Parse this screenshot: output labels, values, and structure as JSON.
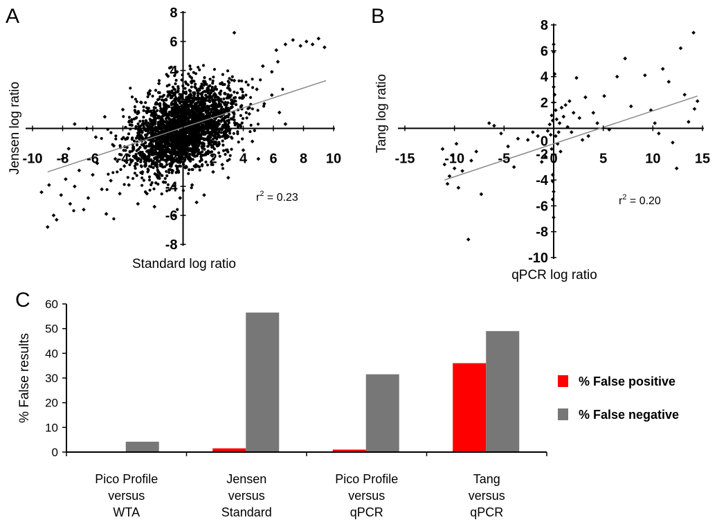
{
  "chart_data": [
    {
      "panel": "A",
      "type": "scatter",
      "xlabel": "Standard log ratio",
      "ylabel": "Jensen log ratio",
      "xlim": [
        -10,
        10
      ],
      "ylim": [
        -8,
        8
      ],
      "xticks": [
        "-10",
        "-8",
        "-6",
        "-4",
        "-2",
        "0",
        "2",
        "4",
        "6",
        "8",
        "10"
      ],
      "yticks": [
        "-8",
        "-6",
        "-4",
        "-2",
        "0",
        "2",
        "4",
        "6",
        "8"
      ],
      "annotation": "r2 = 0.23",
      "trendline": {
        "x": [
          -9.0,
          9.5
        ],
        "y": [
          -3.0,
          3.3
        ]
      },
      "points": [
        [
          -9.0,
          -6.8
        ],
        [
          -8.6,
          -6.0
        ],
        [
          -8.4,
          -6.3
        ],
        [
          -8.1,
          -4.6
        ],
        [
          -7.8,
          -3.5
        ],
        [
          -7.5,
          -5.2
        ],
        [
          -7.2,
          -4.0
        ],
        [
          -6.9,
          -2.9
        ],
        [
          -6.6,
          -5.6
        ],
        [
          -6.3,
          -4.8
        ],
        [
          -6.0,
          -3.2
        ],
        [
          -5.7,
          -2.4
        ],
        [
          -5.4,
          -4.2
        ],
        [
          -5.1,
          -5.9
        ],
        [
          -4.8,
          -3.6
        ],
        [
          -4.5,
          -2.1
        ],
        [
          -4.2,
          -4.5
        ],
        [
          -3.9,
          -2.6
        ],
        [
          -3.6,
          -3.9
        ],
        [
          -3.3,
          -1.4
        ],
        [
          -3.0,
          -5.2
        ],
        [
          -2.7,
          -3.0
        ],
        [
          -7.2,
          0.3
        ],
        [
          -6.4,
          0.0
        ],
        [
          -5.8,
          -0.6
        ],
        [
          -5.2,
          0.8
        ],
        [
          -4.6,
          -1.2
        ],
        [
          -4.0,
          1.3
        ],
        [
          -3.4,
          0.6
        ],
        [
          -2.8,
          1.8
        ],
        [
          -2.2,
          2.6
        ],
        [
          -1.6,
          3.1
        ],
        [
          -1.0,
          3.6
        ],
        [
          -0.4,
          3.9
        ],
        [
          0.5,
          4.1
        ],
        [
          1.2,
          2.9
        ],
        [
          2.0,
          1.9
        ],
        [
          2.8,
          2.4
        ],
        [
          3.4,
          3.3
        ],
        [
          3.9,
          2.1
        ],
        [
          4.4,
          1.0
        ],
        [
          4.9,
          2.7
        ],
        [
          5.4,
          1.7
        ],
        [
          5.9,
          2.3
        ],
        [
          6.4,
          1.1
        ],
        [
          6.8,
          0.3
        ],
        [
          3.4,
          6.6
        ],
        [
          6.2,
          5.4
        ],
        [
          6.8,
          5.8
        ],
        [
          7.3,
          6.1
        ],
        [
          7.8,
          5.7
        ],
        [
          8.2,
          6.0
        ],
        [
          8.6,
          5.8
        ],
        [
          9.0,
          6.2
        ],
        [
          9.4,
          5.6
        ],
        [
          5.3,
          4.3
        ],
        [
          5.9,
          3.9
        ],
        [
          6.3,
          4.6
        ],
        [
          2.0,
          -3.0
        ],
        [
          2.6,
          -2.5
        ],
        [
          3.0,
          -3.4
        ],
        [
          1.4,
          -4.6
        ],
        [
          0.6,
          -3.9
        ],
        [
          -0.2,
          -4.8
        ],
        [
          -1.3,
          -3.7
        ],
        [
          -0.6,
          -6.0
        ],
        [
          -1.9,
          -5.4
        ],
        [
          0.9,
          -5.1
        ],
        [
          -2.4,
          -4.5
        ],
        [
          4.0,
          -1.5
        ],
        [
          4.6,
          -0.9
        ],
        [
          5.0,
          -2.1
        ],
        [
          -8.0,
          -2.1
        ],
        [
          -8.9,
          -3.9
        ],
        [
          -9.4,
          -4.4
        ],
        [
          -7.6,
          -1.4
        ]
      ]
    },
    {
      "panel": "B",
      "type": "scatter",
      "xlabel": "qPCR log ratio",
      "ylabel": "Tang log ratio",
      "xlim": [
        -15,
        15
      ],
      "ylim": [
        -10,
        8
      ],
      "xticks": [
        "-15",
        "-10",
        "-5",
        "0",
        "5",
        "10",
        "15"
      ],
      "yticks": [
        "-10",
        "-8",
        "-6",
        "-4",
        "-2",
        "0",
        "2",
        "4",
        "6",
        "8"
      ],
      "annotation": "r2 = 0.20",
      "trendline": {
        "x": [
          -11.0,
          14.5
        ],
        "y": [
          -4.0,
          2.5
        ]
      },
      "points": [
        [
          -11.2,
          -1.6
        ],
        [
          -11.0,
          -2.8
        ],
        [
          -10.7,
          -4.3
        ],
        [
          -10.5,
          -3.7
        ],
        [
          -10.2,
          -2.1
        ],
        [
          -10.0,
          -3.1
        ],
        [
          -9.8,
          -1.2
        ],
        [
          -9.6,
          -4.6
        ],
        [
          -9.2,
          -3.3
        ],
        [
          -8.6,
          -8.6
        ],
        [
          -8.3,
          -2.5
        ],
        [
          -7.8,
          -1.8
        ],
        [
          -7.3,
          -5.1
        ],
        [
          -6.5,
          0.4
        ],
        [
          -6.0,
          0.2
        ],
        [
          -5.3,
          -0.4
        ],
        [
          -4.6,
          -1.4
        ],
        [
          -4.0,
          -3.0
        ],
        [
          -3.6,
          -0.8
        ],
        [
          -2.6,
          -0.9
        ],
        [
          -2.1,
          -0.3
        ],
        [
          -1.6,
          -0.6
        ],
        [
          -1.2,
          -2.6
        ],
        [
          -0.8,
          -2.2
        ],
        [
          -0.6,
          -0.2
        ],
        [
          -0.4,
          0.3
        ],
        [
          -0.3,
          -0.5
        ],
        [
          -0.2,
          -1.6
        ],
        [
          -0.2,
          1.0
        ],
        [
          -0.1,
          0.6
        ],
        [
          -0.1,
          -3.6
        ],
        [
          0.0,
          -6.9
        ],
        [
          0.0,
          -4.9
        ],
        [
          -0.1,
          -5.5
        ],
        [
          -0.1,
          -4.1
        ],
        [
          0.0,
          2.0
        ],
        [
          0.0,
          3.2
        ],
        [
          0.0,
          5.9
        ],
        [
          0.0,
          6.5
        ],
        [
          0.1,
          4.2
        ],
        [
          0.1,
          2.6
        ],
        [
          0.2,
          1.4
        ],
        [
          0.2,
          -0.6
        ],
        [
          0.3,
          0.7
        ],
        [
          0.4,
          -1.2
        ],
        [
          0.5,
          -0.3
        ],
        [
          0.6,
          0.4
        ],
        [
          0.7,
          -1.8
        ],
        [
          0.8,
          1.6
        ],
        [
          1.0,
          0.9
        ],
        [
          1.2,
          1.8
        ],
        [
          1.4,
          0.1
        ],
        [
          1.6,
          2.1
        ],
        [
          1.8,
          -0.3
        ],
        [
          2.0,
          1.2
        ],
        [
          2.3,
          3.9
        ],
        [
          2.6,
          0.8
        ],
        [
          2.9,
          -0.9
        ],
        [
          3.2,
          2.4
        ],
        [
          3.5,
          -0.6
        ],
        [
          4.0,
          1.2
        ],
        [
          4.4,
          0.4
        ],
        [
          5.1,
          2.5
        ],
        [
          5.6,
          -0.1
        ],
        [
          6.4,
          4.0
        ],
        [
          7.2,
          5.4
        ],
        [
          7.8,
          1.7
        ],
        [
          9.2,
          4.1
        ],
        [
          9.8,
          1.4
        ],
        [
          10.2,
          0.4
        ],
        [
          10.6,
          -0.4
        ],
        [
          11.0,
          4.6
        ],
        [
          11.6,
          3.6
        ],
        [
          12.0,
          -1.1
        ],
        [
          12.4,
          -3.1
        ],
        [
          12.8,
          6.2
        ],
        [
          13.2,
          2.6
        ],
        [
          13.6,
          0.5
        ],
        [
          14.1,
          7.4
        ],
        [
          14.5,
          2.1
        ],
        [
          14.2,
          1.5
        ]
      ]
    },
    {
      "panel": "C",
      "type": "bar",
      "ylabel": "% False results",
      "ylim": [
        0,
        60
      ],
      "yticks": [
        "0",
        "10",
        "20",
        "30",
        "40",
        "50",
        "60"
      ],
      "categories": [
        [
          "Pico Profile",
          "versus",
          "WTA"
        ],
        [
          "Jensen",
          "versus",
          "Standard"
        ],
        [
          "Pico Profile",
          "versus",
          "qPCR"
        ],
        [
          "Tang",
          "versus",
          "qPCR"
        ]
      ],
      "series": [
        {
          "name": "% False positive",
          "color": "#ff0000",
          "values": [
            0,
            1.5,
            1.0,
            36
          ]
        },
        {
          "name": "% False negative",
          "color": "#777777",
          "values": [
            4.2,
            56.5,
            31.5,
            49
          ]
        }
      ],
      "legend": "right"
    }
  ],
  "panel_letters": {
    "a": "A",
    "b": "B",
    "c": "C"
  },
  "r2_labels": {
    "a_r": "r",
    "a_sup": "2",
    "a_rest": " = 0.23",
    "b_r": "r",
    "b_sup": "2",
    "b_rest": " = 0.20"
  }
}
